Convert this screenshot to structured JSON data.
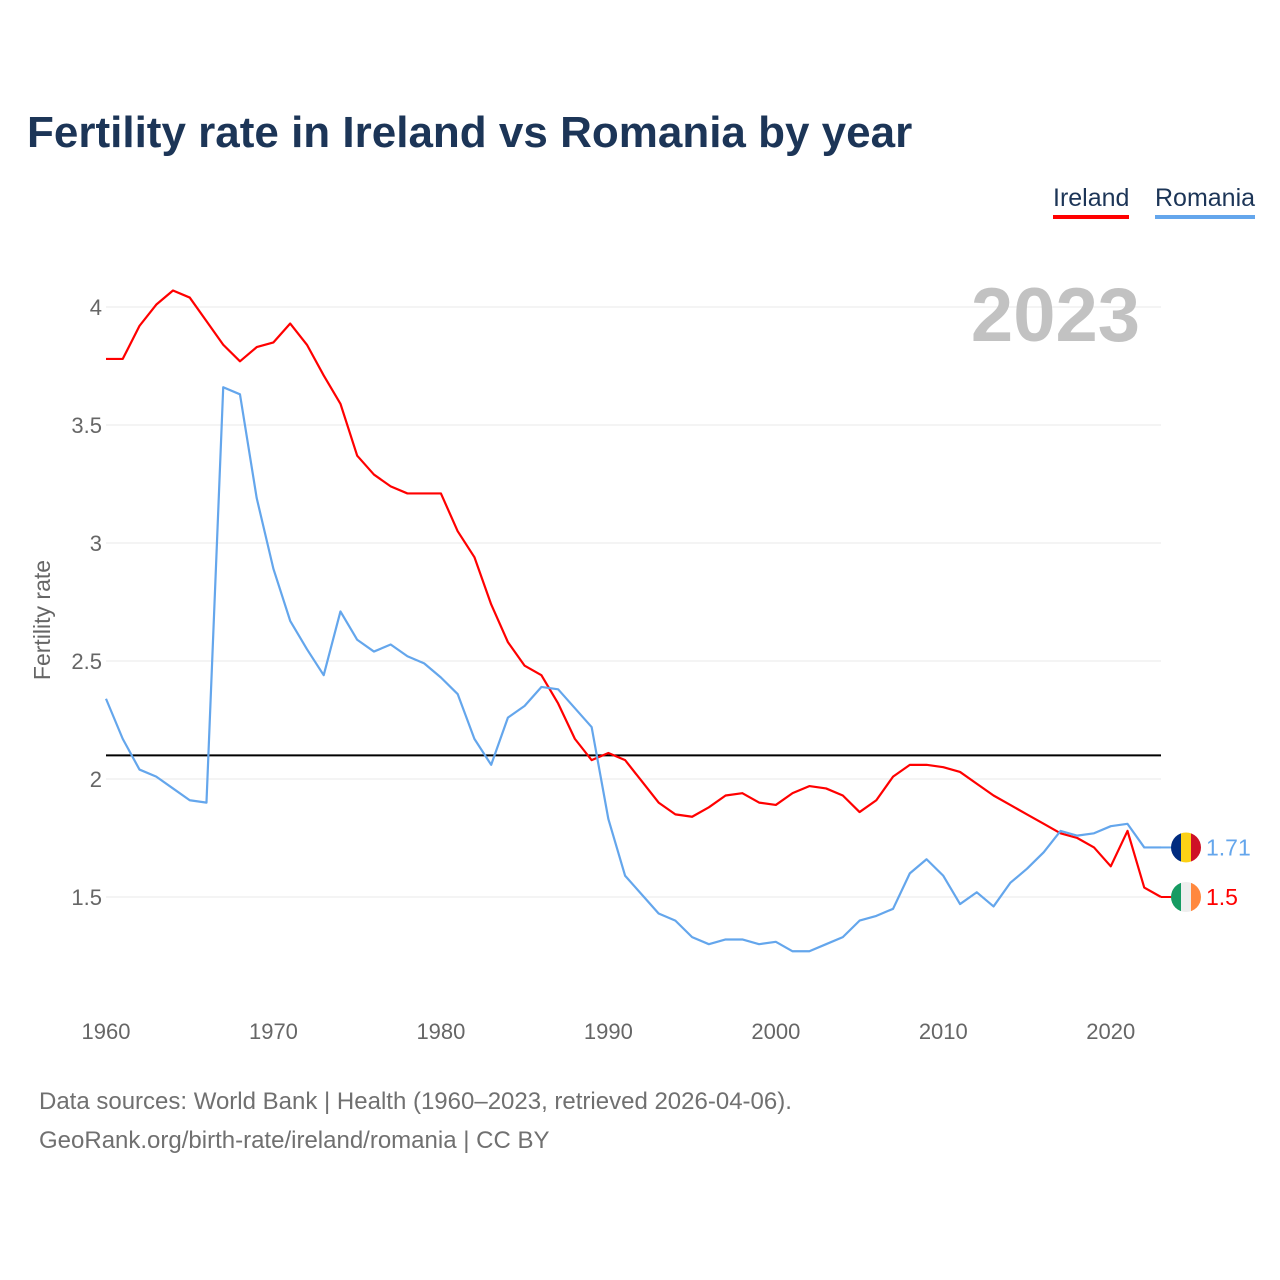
{
  "chart_data": {
    "type": "line",
    "title": "Fertility rate in Ireland vs Romania by year",
    "xlabel": "",
    "ylabel": "Fertility rate",
    "xlim": [
      1960,
      2023
    ],
    "ylim": [
      1.0,
      4.2
    ],
    "yticks": [
      "1.5",
      "2",
      "2.5",
      "3",
      "3.5",
      "4"
    ],
    "xticks": [
      "1960",
      "1970",
      "1980",
      "1990",
      "2000",
      "2010",
      "2020"
    ],
    "grid": true,
    "legend_placement": "top-right",
    "reference_line": 2.1,
    "year_label": "2023",
    "x": [
      1960,
      1961,
      1962,
      1963,
      1964,
      1965,
      1966,
      1967,
      1968,
      1969,
      1970,
      1971,
      1972,
      1973,
      1974,
      1975,
      1976,
      1977,
      1978,
      1979,
      1980,
      1981,
      1982,
      1983,
      1984,
      1985,
      1986,
      1987,
      1988,
      1989,
      1990,
      1991,
      1992,
      1993,
      1994,
      1995,
      1996,
      1997,
      1998,
      1999,
      2000,
      2001,
      2002,
      2003,
      2004,
      2005,
      2006,
      2007,
      2008,
      2009,
      2010,
      2011,
      2012,
      2013,
      2014,
      2015,
      2016,
      2017,
      2018,
      2019,
      2020,
      2021,
      2022,
      2023
    ],
    "series": [
      {
        "name": "Ireland",
        "color": "#ff0000",
        "end_label": "1.5",
        "values": [
          3.78,
          3.78,
          3.92,
          4.01,
          4.07,
          4.04,
          3.94,
          3.84,
          3.77,
          3.83,
          3.85,
          3.93,
          3.84,
          3.71,
          3.59,
          3.37,
          3.29,
          3.24,
          3.21,
          3.21,
          3.21,
          3.05,
          2.94,
          2.74,
          2.58,
          2.48,
          2.44,
          2.32,
          2.17,
          2.08,
          2.11,
          2.08,
          1.99,
          1.9,
          1.85,
          1.84,
          1.88,
          1.93,
          1.94,
          1.9,
          1.89,
          1.94,
          1.97,
          1.96,
          1.93,
          1.86,
          1.91,
          2.01,
          2.06,
          2.06,
          2.05,
          2.03,
          1.98,
          1.93,
          1.89,
          1.85,
          1.81,
          1.77,
          1.75,
          1.71,
          1.63,
          1.78,
          1.54,
          1.5
        ]
      },
      {
        "name": "Romania",
        "color": "#64a6ec",
        "end_label": "1.71",
        "values": [
          2.34,
          2.17,
          2.04,
          2.01,
          1.96,
          1.91,
          1.9,
          3.66,
          3.63,
          3.19,
          2.89,
          2.67,
          2.55,
          2.44,
          2.71,
          2.59,
          2.54,
          2.57,
          2.52,
          2.49,
          2.43,
          2.36,
          2.17,
          2.06,
          2.26,
          2.31,
          2.39,
          2.38,
          2.3,
          2.22,
          1.83,
          1.59,
          1.51,
          1.43,
          1.4,
          1.33,
          1.3,
          1.32,
          1.32,
          1.3,
          1.31,
          1.27,
          1.27,
          1.3,
          1.33,
          1.4,
          1.42,
          1.45,
          1.6,
          1.66,
          1.59,
          1.47,
          1.52,
          1.46,
          1.56,
          1.62,
          1.69,
          1.78,
          1.76,
          1.77,
          1.8,
          1.81,
          1.71,
          1.71
        ]
      }
    ]
  },
  "footer": {
    "source": "Data sources: World Bank | Health (1960–2023, retrieved 2026-04-06).",
    "credit": "GeoRank.org/birth-rate/ireland/romania | CC BY"
  }
}
